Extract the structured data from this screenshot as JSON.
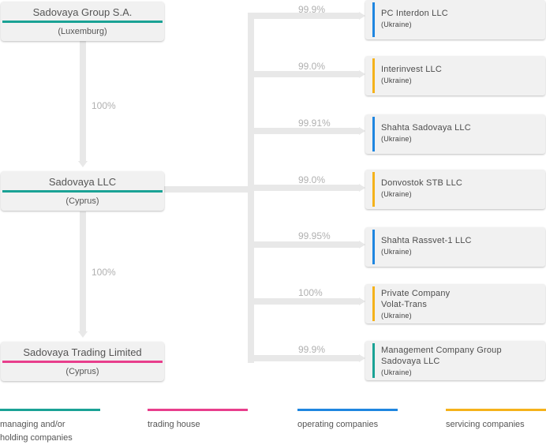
{
  "colors": {
    "managing": "#1aa295",
    "trading": "#e83e8c",
    "operating": "#1f86e0",
    "servicing": "#f5b21b",
    "connector": "#e8e8e8"
  },
  "left_companies": [
    {
      "name": "Sadovaya Group S.A.",
      "country": "(Luxemburg)",
      "type": "managing"
    },
    {
      "name": "Sadovaya LLC",
      "country": "(Cyprus)",
      "type": "managing"
    },
    {
      "name": "Sadovaya Trading Limited",
      "country": "(Cyprus)",
      "type": "trading"
    }
  ],
  "vertical_percentages": [
    "100%",
    "100%"
  ],
  "subsidiaries": [
    {
      "pct": "99.9%",
      "name": "PC Interdon LLC",
      "country": "(Ukraine)",
      "type": "operating"
    },
    {
      "pct": "99.0%",
      "name": "Interinvest LLC",
      "country": "(Ukraine)",
      "type": "servicing"
    },
    {
      "pct": "99.91%",
      "name": "Shahta Sadovaya LLC",
      "country": "(Ukraine)",
      "type": "operating"
    },
    {
      "pct": "99.0%",
      "name": "Donvostok STB LLC",
      "country": "(Ukraine)",
      "type": "servicing"
    },
    {
      "pct": "99.95%",
      "name": "Shahta Rassvet-1 LLC",
      "country": "(Ukraine)",
      "type": "operating"
    },
    {
      "pct": "100%",
      "name": "Private Company\nVolat-Trans",
      "country": "(Ukraine)",
      "type": "servicing"
    },
    {
      "pct": "99.9%",
      "name": "Management Company Group\nSadovaya LLC",
      "country": "(Ukraine)",
      "type": "managing"
    }
  ],
  "legend": [
    {
      "label": "managing and/or\nholding companies",
      "type": "managing"
    },
    {
      "label": "trading house",
      "type": "trading"
    },
    {
      "label": "operating companies",
      "type": "operating"
    },
    {
      "label": "servicing companies",
      "type": "servicing"
    }
  ]
}
